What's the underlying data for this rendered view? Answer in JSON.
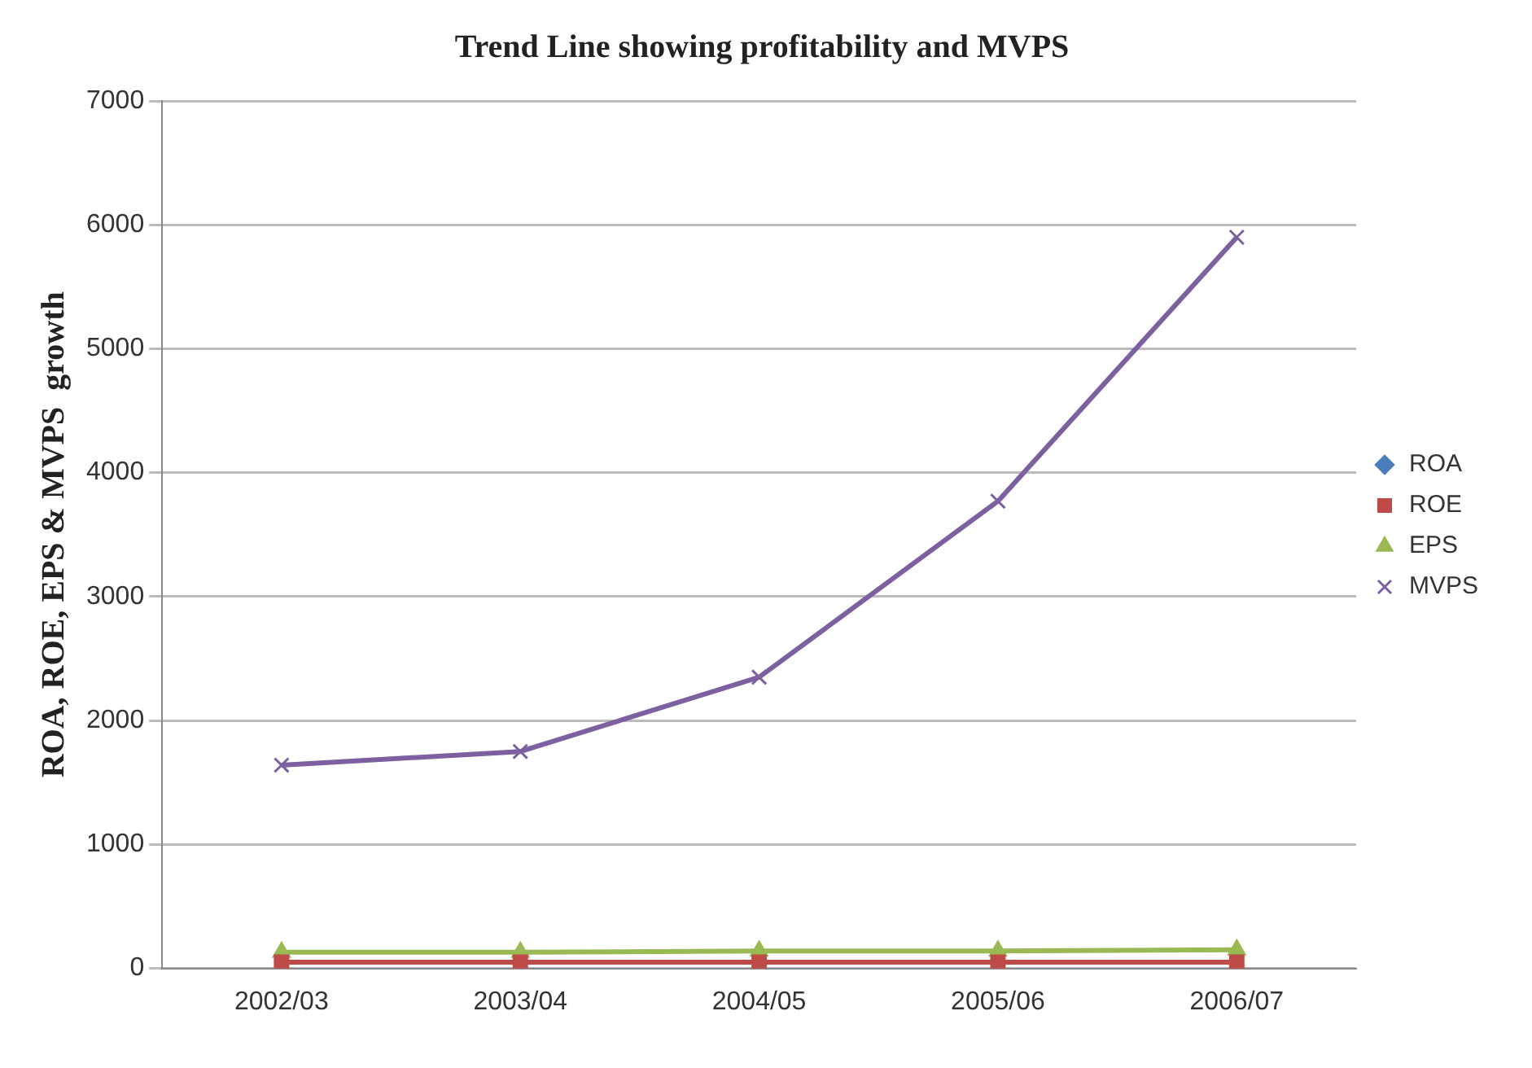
{
  "chart_data": {
    "type": "line",
    "title": "Trend Line showing profitability and MVPS",
    "ylabel": "ROA, ROE, EPS & MVPS  growth",
    "categories": [
      "2002/03",
      "2003/04",
      "2004/05",
      "2005/06",
      "2006/07"
    ],
    "series": [
      {
        "name": "ROA",
        "color": "#4a7ebb",
        "marker": "diamond",
        "values": [
          null,
          null,
          null,
          null,
          null
        ]
      },
      {
        "name": "ROE",
        "color": "#be4b48",
        "marker": "square",
        "values": [
          50,
          50,
          50,
          50,
          50
        ]
      },
      {
        "name": "EPS",
        "color": "#98b954",
        "marker": "triangle",
        "values": [
          130,
          130,
          140,
          140,
          150
        ]
      },
      {
        "name": "MVPS",
        "color": "#7d60a0",
        "marker": "cross",
        "values": [
          1640,
          1750,
          2350,
          3770,
          5900
        ]
      }
    ],
    "ylim": [
      0,
      7000
    ],
    "yticks": [
      0,
      1000,
      2000,
      3000,
      4000,
      5000,
      6000,
      7000
    ],
    "grid": "y",
    "legend": "right"
  }
}
